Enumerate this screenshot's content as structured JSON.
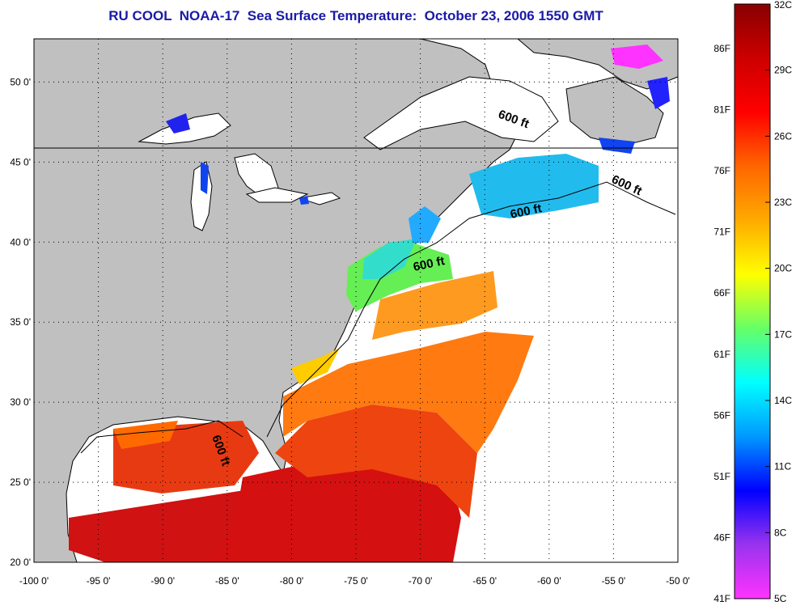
{
  "title": "RU COOL  NOAA-17  Sea Surface Temperature:  October 23, 2006 1550 GMT",
  "axes": {
    "lon_labels": [
      "-100 0'",
      "-95 0'",
      "-90 0'",
      "-85 0'",
      "-80 0'",
      "-75 0'",
      "-70 0'",
      "-65 0'",
      "-60 0'",
      "-55 0'",
      "-50 0'"
    ],
    "lat_labels": [
      "20 0'",
      "25 0'",
      "30 0'",
      "35 0'",
      "40 0'",
      "45 0'",
      "50 0'"
    ]
  },
  "contour_label": "600 ft",
  "colorbar": {
    "celsius_labels": [
      "32C",
      "29C",
      "26C",
      "23C",
      "20C",
      "17C",
      "14C",
      "11C",
      "8C",
      "5C"
    ],
    "fahrenheit_labels": [
      "86F",
      "81F",
      "76F",
      "71F",
      "66F",
      "61F",
      "56F",
      "51F",
      "46F",
      "41F"
    ],
    "colors": [
      "#ff33ff",
      "#9933ee",
      "#0000ff",
      "#0099ff",
      "#00ffff",
      "#66ff66",
      "#ffff00",
      "#ffaa00",
      "#ff6600",
      "#ff0000",
      "#cc0000",
      "#880000"
    ]
  },
  "colors": {
    "land": "#c0c0c0",
    "ocean_no_data": "#ffffff",
    "title": "#1a1aa8"
  }
}
